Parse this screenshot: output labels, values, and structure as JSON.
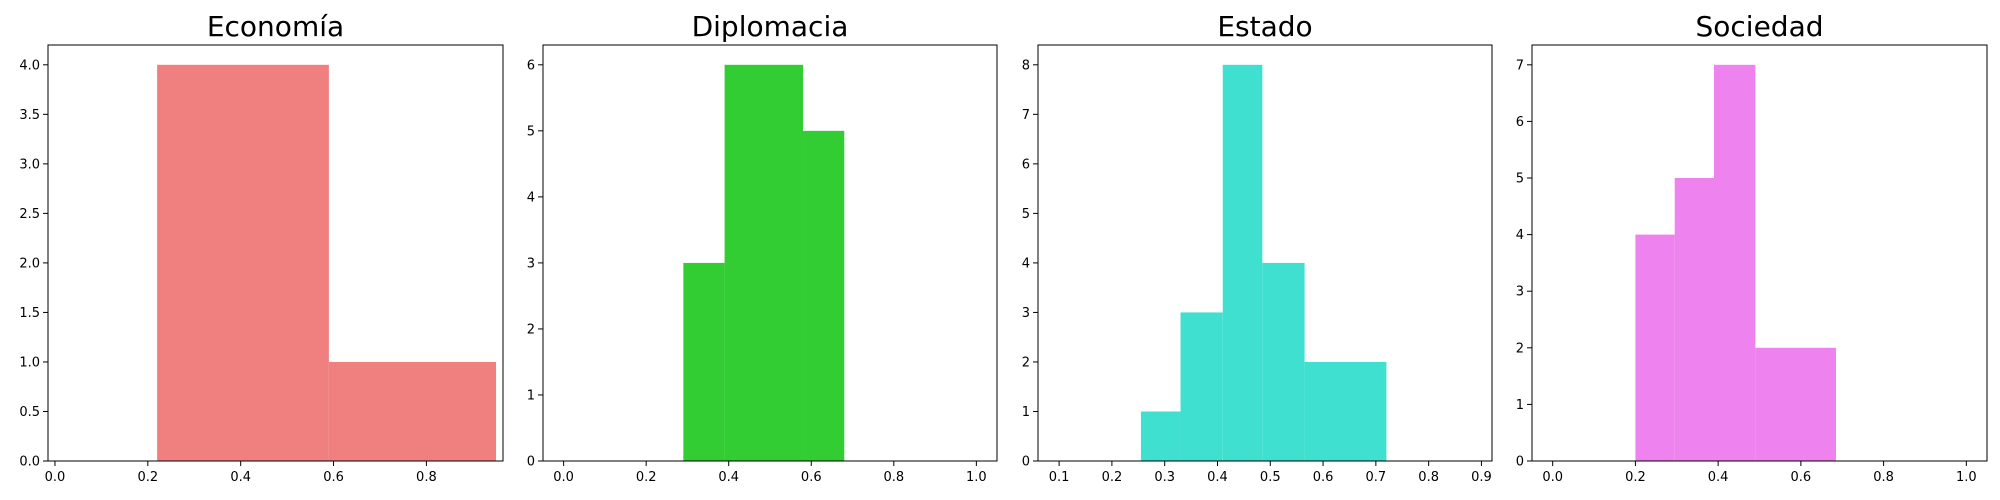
{
  "chart_data": [
    {
      "type": "bar",
      "title": "Economía",
      "color": "#f08080",
      "xlim": [
        -0.015,
        0.965
      ],
      "ylim": [
        0,
        4.2
      ],
      "xticks": [
        0.0,
        0.2,
        0.4,
        0.6,
        0.8
      ],
      "xtick_labels": [
        "0.0",
        "0.2",
        "0.4",
        "0.6",
        "0.8"
      ],
      "yticks": [
        0,
        0.5,
        1,
        1.5,
        2,
        2.5,
        3,
        3.5,
        4
      ],
      "ytick_labels": [
        "0.0",
        "0.5",
        "1.0",
        "1.5",
        "2.0",
        "2.5",
        "3.0",
        "3.5",
        "4.0"
      ],
      "bins": [
        {
          "x0": 0.22,
          "x1": 0.59,
          "value": 4
        },
        {
          "x0": 0.59,
          "x1": 0.95,
          "value": 1
        }
      ]
    },
    {
      "type": "bar",
      "title": "Diplomacia",
      "color": "#32cd32",
      "xlim": [
        -0.05,
        1.05
      ],
      "ylim": [
        0,
        6.3
      ],
      "xticks": [
        0.0,
        0.2,
        0.4,
        0.6,
        0.8,
        1.0
      ],
      "xtick_labels": [
        "0.0",
        "0.2",
        "0.4",
        "0.6",
        "0.8",
        "1.0"
      ],
      "yticks": [
        0,
        1,
        2,
        3,
        4,
        5,
        6
      ],
      "ytick_labels": [
        "0",
        "1",
        "2",
        "3",
        "4",
        "5",
        "6"
      ],
      "bins": [
        {
          "x0": 0.29,
          "x1": 0.39,
          "value": 3
        },
        {
          "x0": 0.39,
          "x1": 0.58,
          "value": 6
        },
        {
          "x0": 0.58,
          "x1": 0.68,
          "value": 5
        }
      ]
    },
    {
      "type": "bar",
      "title": "Estado",
      "color": "#40e0d0",
      "xlim": [
        0.06,
        0.92
      ],
      "ylim": [
        0,
        8.4
      ],
      "xticks": [
        0.1,
        0.2,
        0.3,
        0.4,
        0.5,
        0.6,
        0.7,
        0.8,
        0.9
      ],
      "xtick_labels": [
        "0.1",
        "0.2",
        "0.3",
        "0.4",
        "0.5",
        "0.6",
        "0.7",
        "0.8",
        "0.9"
      ],
      "yticks": [
        0,
        1,
        2,
        3,
        4,
        5,
        6,
        7,
        8
      ],
      "ytick_labels": [
        "0",
        "1",
        "2",
        "3",
        "4",
        "5",
        "6",
        "7",
        "8"
      ],
      "bins": [
        {
          "x0": 0.255,
          "x1": 0.33,
          "value": 1
        },
        {
          "x0": 0.33,
          "x1": 0.41,
          "value": 3
        },
        {
          "x0": 0.41,
          "x1": 0.485,
          "value": 8
        },
        {
          "x0": 0.485,
          "x1": 0.565,
          "value": 4
        },
        {
          "x0": 0.565,
          "x1": 0.72,
          "value": 2
        }
      ]
    },
    {
      "type": "bar",
      "title": "Sociedad",
      "color": "#ee82ee",
      "xlim": [
        -0.05,
        1.05
      ],
      "ylim": [
        0,
        7.35
      ],
      "xticks": [
        0.0,
        0.2,
        0.4,
        0.6,
        0.8,
        1.0
      ],
      "xtick_labels": [
        "0.0",
        "0.2",
        "0.4",
        "0.6",
        "0.8",
        "1.0"
      ],
      "yticks": [
        0,
        1,
        2,
        3,
        4,
        5,
        6,
        7
      ],
      "ytick_labels": [
        "0",
        "1",
        "2",
        "3",
        "4",
        "5",
        "6",
        "7"
      ],
      "bins": [
        {
          "x0": 0.2,
          "x1": 0.295,
          "value": 4
        },
        {
          "x0": 0.295,
          "x1": 0.39,
          "value": 5
        },
        {
          "x0": 0.39,
          "x1": 0.49,
          "value": 7
        },
        {
          "x0": 0.49,
          "x1": 0.685,
          "value": 2
        }
      ]
    }
  ]
}
